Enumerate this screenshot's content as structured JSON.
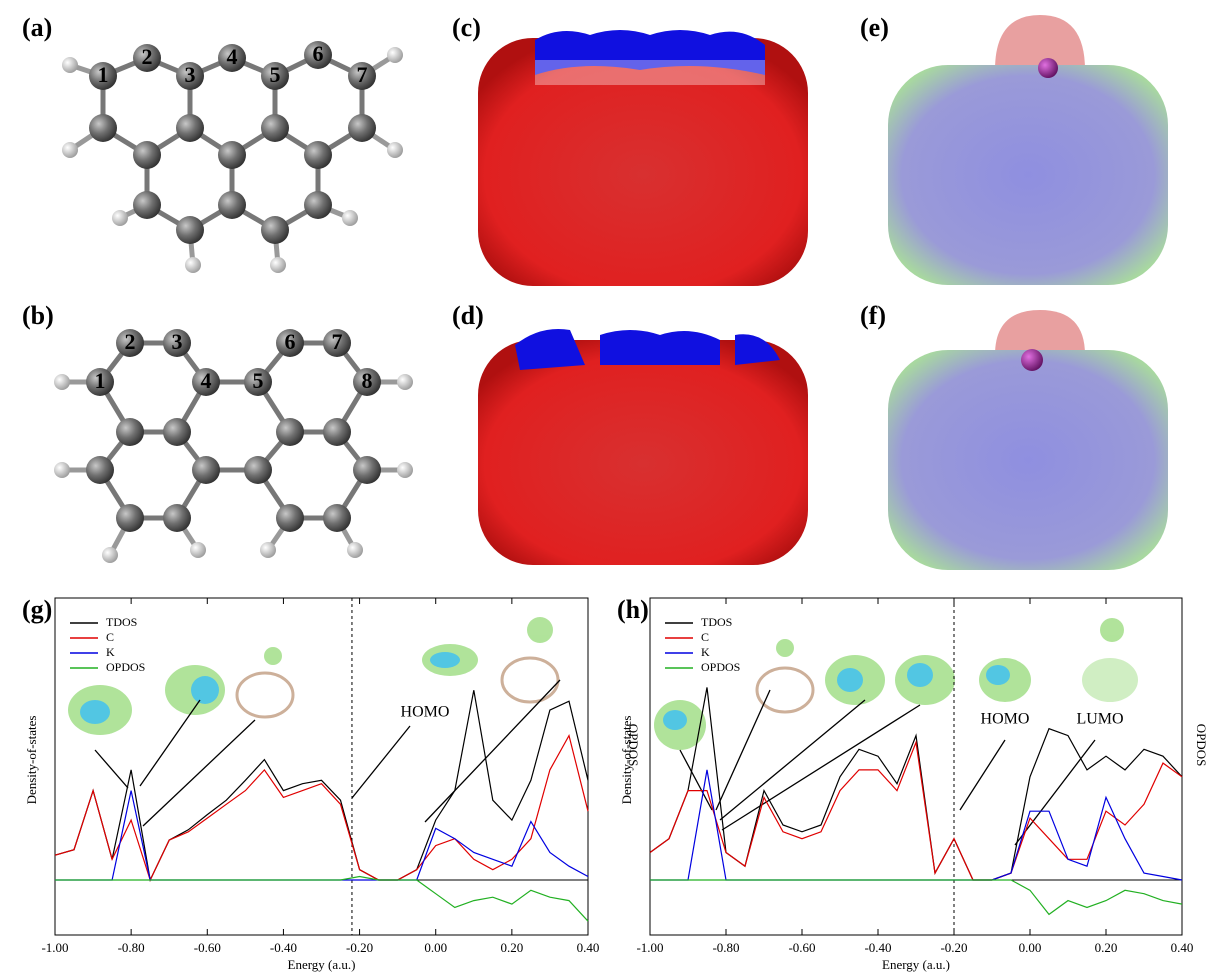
{
  "panels": [
    {
      "label": "(a)",
      "atoms": [
        "1",
        "2",
        "3",
        "4",
        "5",
        "6",
        "7"
      ]
    },
    {
      "label": "(b)",
      "atoms": [
        "1",
        "2",
        "3",
        "4",
        "5",
        "6",
        "7",
        "8"
      ]
    },
    {
      "label": "(c)"
    },
    {
      "label": "(d)"
    },
    {
      "label": "(e)"
    },
    {
      "label": "(f)"
    }
  ],
  "chart_data": [
    {
      "type": "line",
      "label": "(g)",
      "x_label": "Energy (a.u.)",
      "y_label": "Density-of-states",
      "annotations": [
        "HOMO"
      ],
      "dashed_x": -0.22,
      "x": [
        -1.0,
        -0.95,
        -0.9,
        -0.85,
        -0.8,
        -0.75,
        -0.7,
        -0.65,
        -0.6,
        -0.55,
        -0.5,
        -0.45,
        -0.4,
        -0.35,
        -0.3,
        -0.25,
        -0.2,
        -0.15,
        -0.1,
        -0.05,
        0.0,
        0.05,
        0.1,
        0.15,
        0.2,
        0.25,
        0.3,
        0.35,
        0.4
      ],
      "xlim": [
        -1.0,
        0.4
      ],
      "xticks": [
        {
          "value": -1.0,
          "label": "-1.00"
        },
        {
          "value": -0.8,
          "label": "-0.80"
        },
        {
          "value": -0.6,
          "label": "-0.60"
        },
        {
          "value": -0.4,
          "label": "-0.40"
        },
        {
          "value": -0.2,
          "label": "-0.20"
        },
        {
          "value": 0,
          "label": "0.00"
        },
        {
          "value": 0.2,
          "label": "0.20"
        },
        {
          "value": 0.4,
          "label": "0.40"
        }
      ],
      "ylim": [
        -0.8,
        4.1
      ],
      "legend": "upper left",
      "series": [
        {
          "name": "TDOS",
          "color": "#000000",
          "values": [
            0.36,
            0.44,
            1.3,
            0.3,
            1.6,
            0,
            0.58,
            0.73,
            0.95,
            1.16,
            1.45,
            1.75,
            1.3,
            1.4,
            1.45,
            1.16,
            0.15,
            0,
            0,
            0.15,
            0.87,
            1.3,
            2.76,
            1.16,
            0.87,
            1.45,
            2.47,
            2.6,
            1.45
          ]
        },
        {
          "name": "C",
          "color": "#e00000",
          "values": [
            0.36,
            0.44,
            1.3,
            0.3,
            0.87,
            0,
            0.58,
            0.7,
            0.9,
            1.1,
            1.3,
            1.6,
            1.2,
            1.3,
            1.4,
            1.1,
            0.15,
            0,
            0,
            0.15,
            0.5,
            0.6,
            0.3,
            0.15,
            0.3,
            0.6,
            1.6,
            2.1,
            1.0
          ]
        },
        {
          "name": "K",
          "color": "#0000e0",
          "values": [
            0,
            0,
            0,
            0,
            1.3,
            0,
            0,
            0,
            0,
            0,
            0,
            0,
            0,
            0,
            0,
            0,
            0,
            0,
            0,
            0,
            0.75,
            0.6,
            0.4,
            0.3,
            0.2,
            0.85,
            0.4,
            0.2,
            0.05
          ]
        },
        {
          "name": "OPDOS",
          "color": "#22b022",
          "values": [
            0,
            0,
            0,
            0,
            0,
            0,
            0,
            0,
            0,
            0,
            0,
            0,
            0,
            0,
            0,
            0,
            0.05,
            0,
            0,
            0,
            -0.2,
            -0.4,
            -0.3,
            -0.25,
            -0.35,
            -0.15,
            -0.25,
            -0.3,
            -0.6
          ]
        }
      ]
    },
    {
      "type": "line",
      "label": "(h)",
      "x_label": "Energy (a.u.)",
      "y_label": "Density-of-states",
      "y2_label": "OPDOS",
      "annotations": [
        "HOMO",
        "LUMO"
      ],
      "dashed_x": -0.2,
      "x": [
        -1.0,
        -0.95,
        -0.9,
        -0.85,
        -0.8,
        -0.75,
        -0.7,
        -0.65,
        -0.6,
        -0.55,
        -0.5,
        -0.45,
        -0.4,
        -0.35,
        -0.3,
        -0.25,
        -0.2,
        -0.15,
        -0.1,
        -0.05,
        0.0,
        0.05,
        0.1,
        0.15,
        0.2,
        0.25,
        0.3,
        0.35,
        0.4
      ],
      "xlim": [
        -1.0,
        0.4
      ],
      "xticks": [
        {
          "value": -1.0,
          "label": "-1.00"
        },
        {
          "value": -0.8,
          "label": "-0.80"
        },
        {
          "value": -0.6,
          "label": "-0.60"
        },
        {
          "value": -0.4,
          "label": "-0.40"
        },
        {
          "value": -0.2,
          "label": "-0.20"
        },
        {
          "value": 0,
          "label": "0.00"
        },
        {
          "value": 0.2,
          "label": "0.20"
        },
        {
          "value": 0.4,
          "label": "0.40"
        }
      ],
      "ylim": [
        -0.8,
        4.1
      ],
      "legend": "upper left",
      "series": [
        {
          "name": "TDOS",
          "color": "#000000",
          "values": [
            0.4,
            0.6,
            1.3,
            2.8,
            0.4,
            0.2,
            1.3,
            0.8,
            0.7,
            0.8,
            1.5,
            1.9,
            1.8,
            1.4,
            2.1,
            0.1,
            0.6,
            0,
            0,
            0.1,
            1.5,
            2.2,
            2.1,
            1.6,
            1.8,
            1.6,
            1.9,
            1.8,
            1.5
          ]
        },
        {
          "name": "C",
          "color": "#e00000",
          "values": [
            0.4,
            0.6,
            1.3,
            1.3,
            0.4,
            0.2,
            1.2,
            0.7,
            0.6,
            0.7,
            1.3,
            1.6,
            1.6,
            1.3,
            2.0,
            0.1,
            0.6,
            0,
            0,
            0.1,
            0.9,
            0.6,
            0.3,
            0.3,
            1.0,
            0.8,
            1.1,
            1.7,
            1.5
          ]
        },
        {
          "name": "K",
          "color": "#0000e0",
          "values": [
            0,
            0,
            0,
            1.6,
            0,
            0,
            0,
            0,
            0,
            0,
            0,
            0,
            0,
            0,
            0,
            0,
            0,
            0,
            0,
            0.1,
            1.0,
            1.0,
            0.3,
            0.2,
            1.2,
            0.6,
            0.1,
            0.05,
            0
          ]
        },
        {
          "name": "OPDOS",
          "color": "#22b022",
          "values": [
            0,
            0,
            0,
            0,
            0,
            0,
            0,
            0,
            0,
            0,
            0,
            0,
            0,
            0,
            0,
            0,
            0,
            0,
            0,
            0,
            -0.15,
            -0.5,
            -0.3,
            -0.4,
            -0.3,
            -0.15,
            -0.2,
            -0.3,
            -0.35
          ]
        }
      ]
    }
  ]
}
